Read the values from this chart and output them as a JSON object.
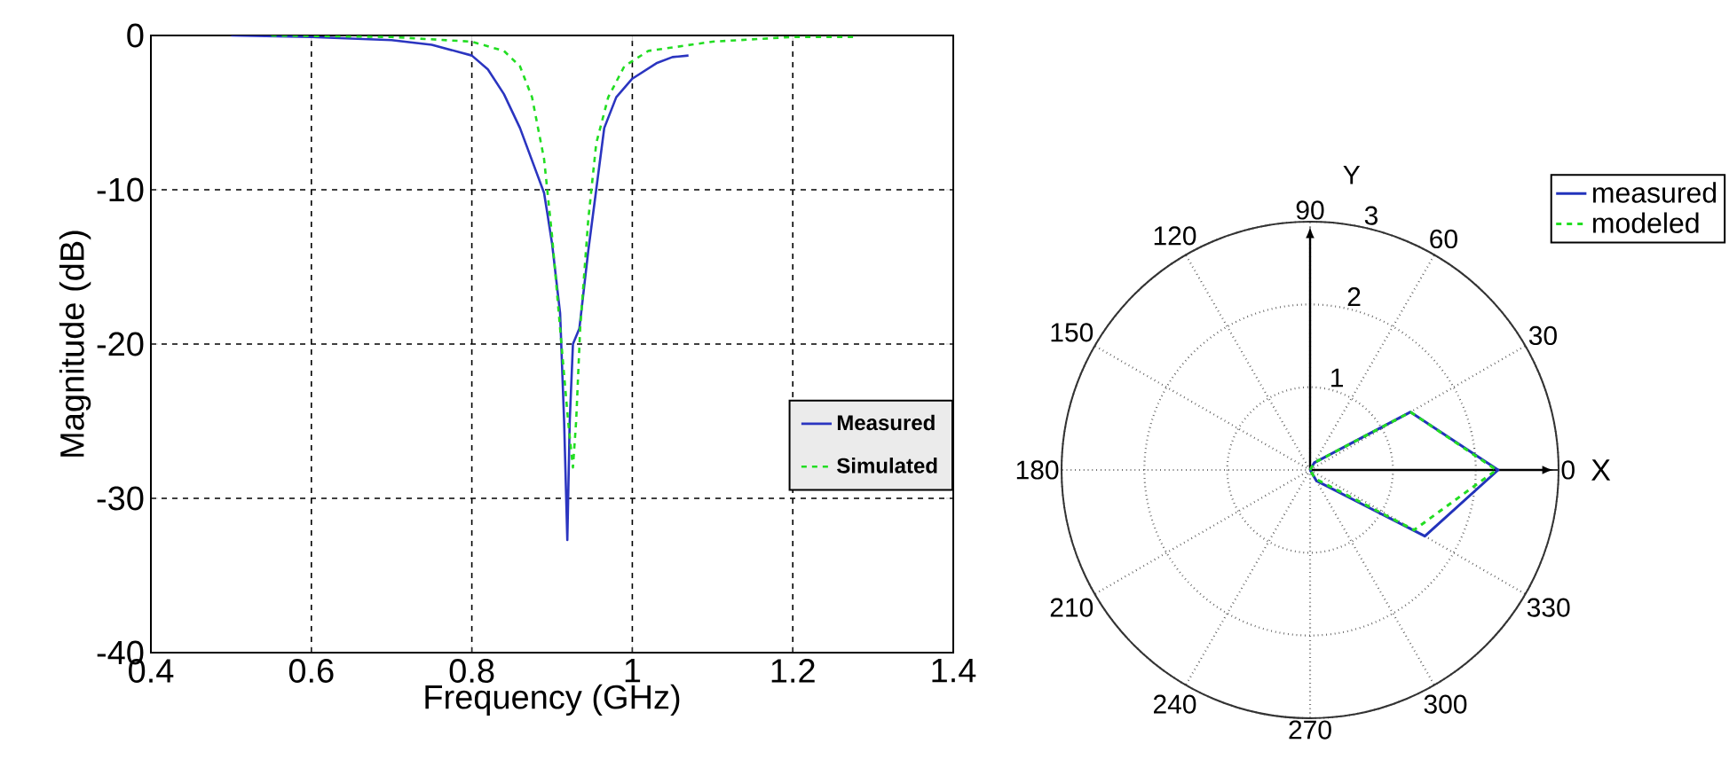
{
  "chart_data": [
    {
      "type": "line",
      "xlabel": "Frequency (GHz)",
      "ylabel": "Magnitude (dB)",
      "xlim": [
        0.4,
        1.4
      ],
      "ylim": [
        -40,
        0
      ],
      "xticks": [
        0.4,
        0.6,
        0.8,
        1,
        1.2,
        1.4
      ],
      "yticks": [
        -40,
        -30,
        -20,
        -10,
        0
      ],
      "grid": true,
      "legend": "right",
      "series": [
        {
          "name": "Measured",
          "color": "#2b35c0",
          "line_style": "solid",
          "x": [
            0.5,
            0.6,
            0.7,
            0.75,
            0.8,
            0.82,
            0.84,
            0.86,
            0.88,
            0.89,
            0.894,
            0.9,
            0.91,
            0.915,
            0.919,
            0.922,
            0.926,
            0.934,
            0.945,
            0.955,
            0.965,
            0.98,
            1.0,
            1.03,
            1.05,
            1.07
          ],
          "values": [
            0,
            -0.1,
            -0.3,
            -0.6,
            -1.3,
            -2.2,
            -3.8,
            -6,
            -8.8,
            -10.2,
            -11.5,
            -13.5,
            -18,
            -25,
            -32.7,
            -25,
            -20,
            -19,
            -14,
            -10,
            -6,
            -4,
            -2.8,
            -1.8,
            -1.4,
            -1.3
          ]
        },
        {
          "name": "Simulated",
          "color": "#22dd22",
          "line_style": "dashed",
          "x": [
            0.55,
            0.7,
            0.8,
            0.84,
            0.86,
            0.875,
            0.89,
            0.9,
            0.91,
            0.92,
            0.926,
            0.93,
            0.935,
            0.945,
            0.955,
            0.97,
            0.99,
            1.02,
            1.1,
            1.2,
            1.28
          ],
          "values": [
            0,
            -0.1,
            -0.4,
            -1,
            -2,
            -4,
            -8,
            -13,
            -19,
            -25,
            -28,
            -25,
            -19,
            -12,
            -7,
            -4,
            -2,
            -1,
            -0.4,
            -0.1,
            -0.1
          ]
        }
      ]
    },
    {
      "type": "radar",
      "xlabel": "X",
      "ylabel": "Y",
      "categories": [
        "90",
        "60",
        "30",
        "0",
        "330",
        "300",
        "270",
        "240",
        "210",
        "180",
        "150",
        "120"
      ],
      "ylim": [
        0,
        3
      ],
      "yticks": [
        1,
        2,
        3
      ],
      "grid": true,
      "legend": "top right",
      "series": [
        {
          "name": "measured",
          "color": "#2233bb",
          "line_style": "solid",
          "values": [
            0,
            0.1,
            1.4,
            2.27,
            1.6,
            0.15,
            0,
            0,
            0,
            0,
            0,
            0
          ]
        },
        {
          "name": "modeled",
          "color": "#22dd22",
          "line_style": "dashed",
          "values": [
            0,
            0.1,
            1.4,
            2.25,
            1.45,
            0.12,
            0,
            0,
            0,
            0,
            0,
            0
          ]
        }
      ]
    }
  ]
}
